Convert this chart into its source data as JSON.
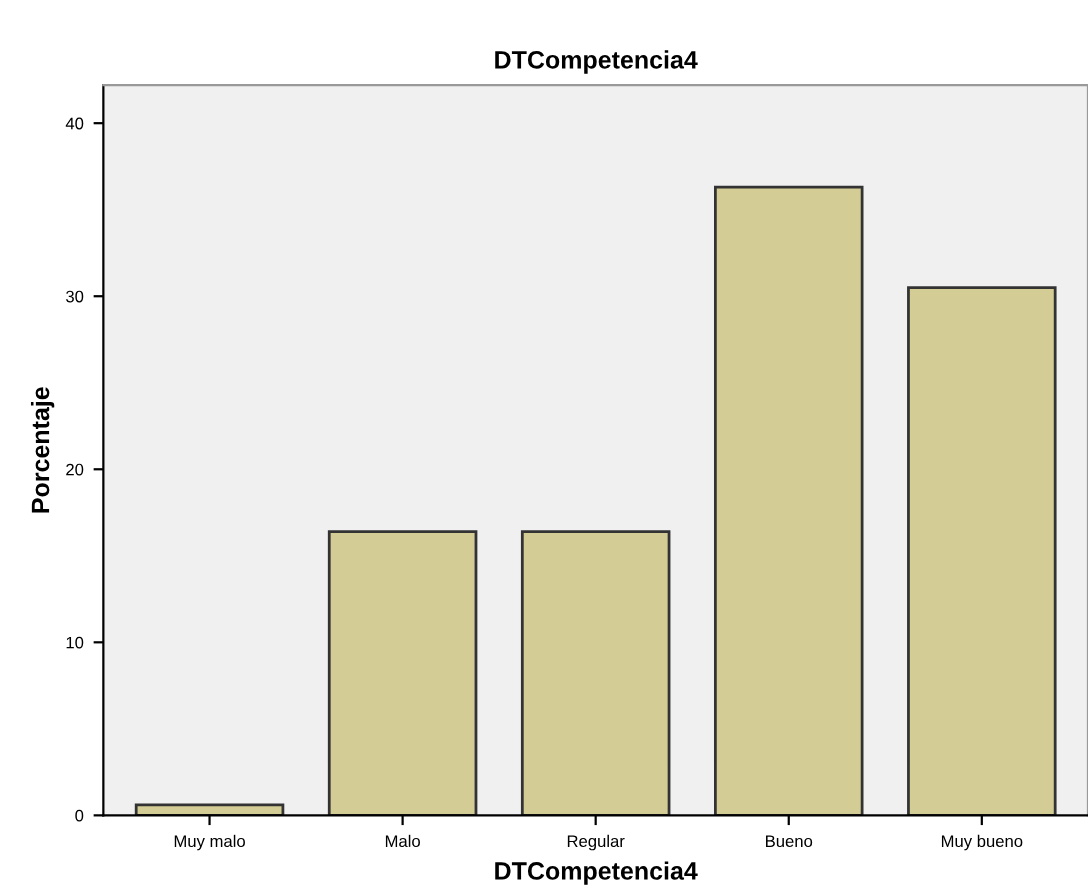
{
  "chart_data": {
    "type": "bar",
    "title": "DTCompetencia4",
    "xlabel": "DTCompetencia4",
    "ylabel": "Porcentaje",
    "categories": [
      "Muy malo",
      "Malo",
      "Regular",
      "Bueno",
      "Muy bueno"
    ],
    "values": [
      0.6,
      16.4,
      16.4,
      36.3,
      30.5
    ],
    "color": "#d3cd95",
    "ylim": [
      0,
      42.2
    ],
    "yticks": [
      0,
      10,
      20,
      30,
      40
    ],
    "grid": false
  }
}
